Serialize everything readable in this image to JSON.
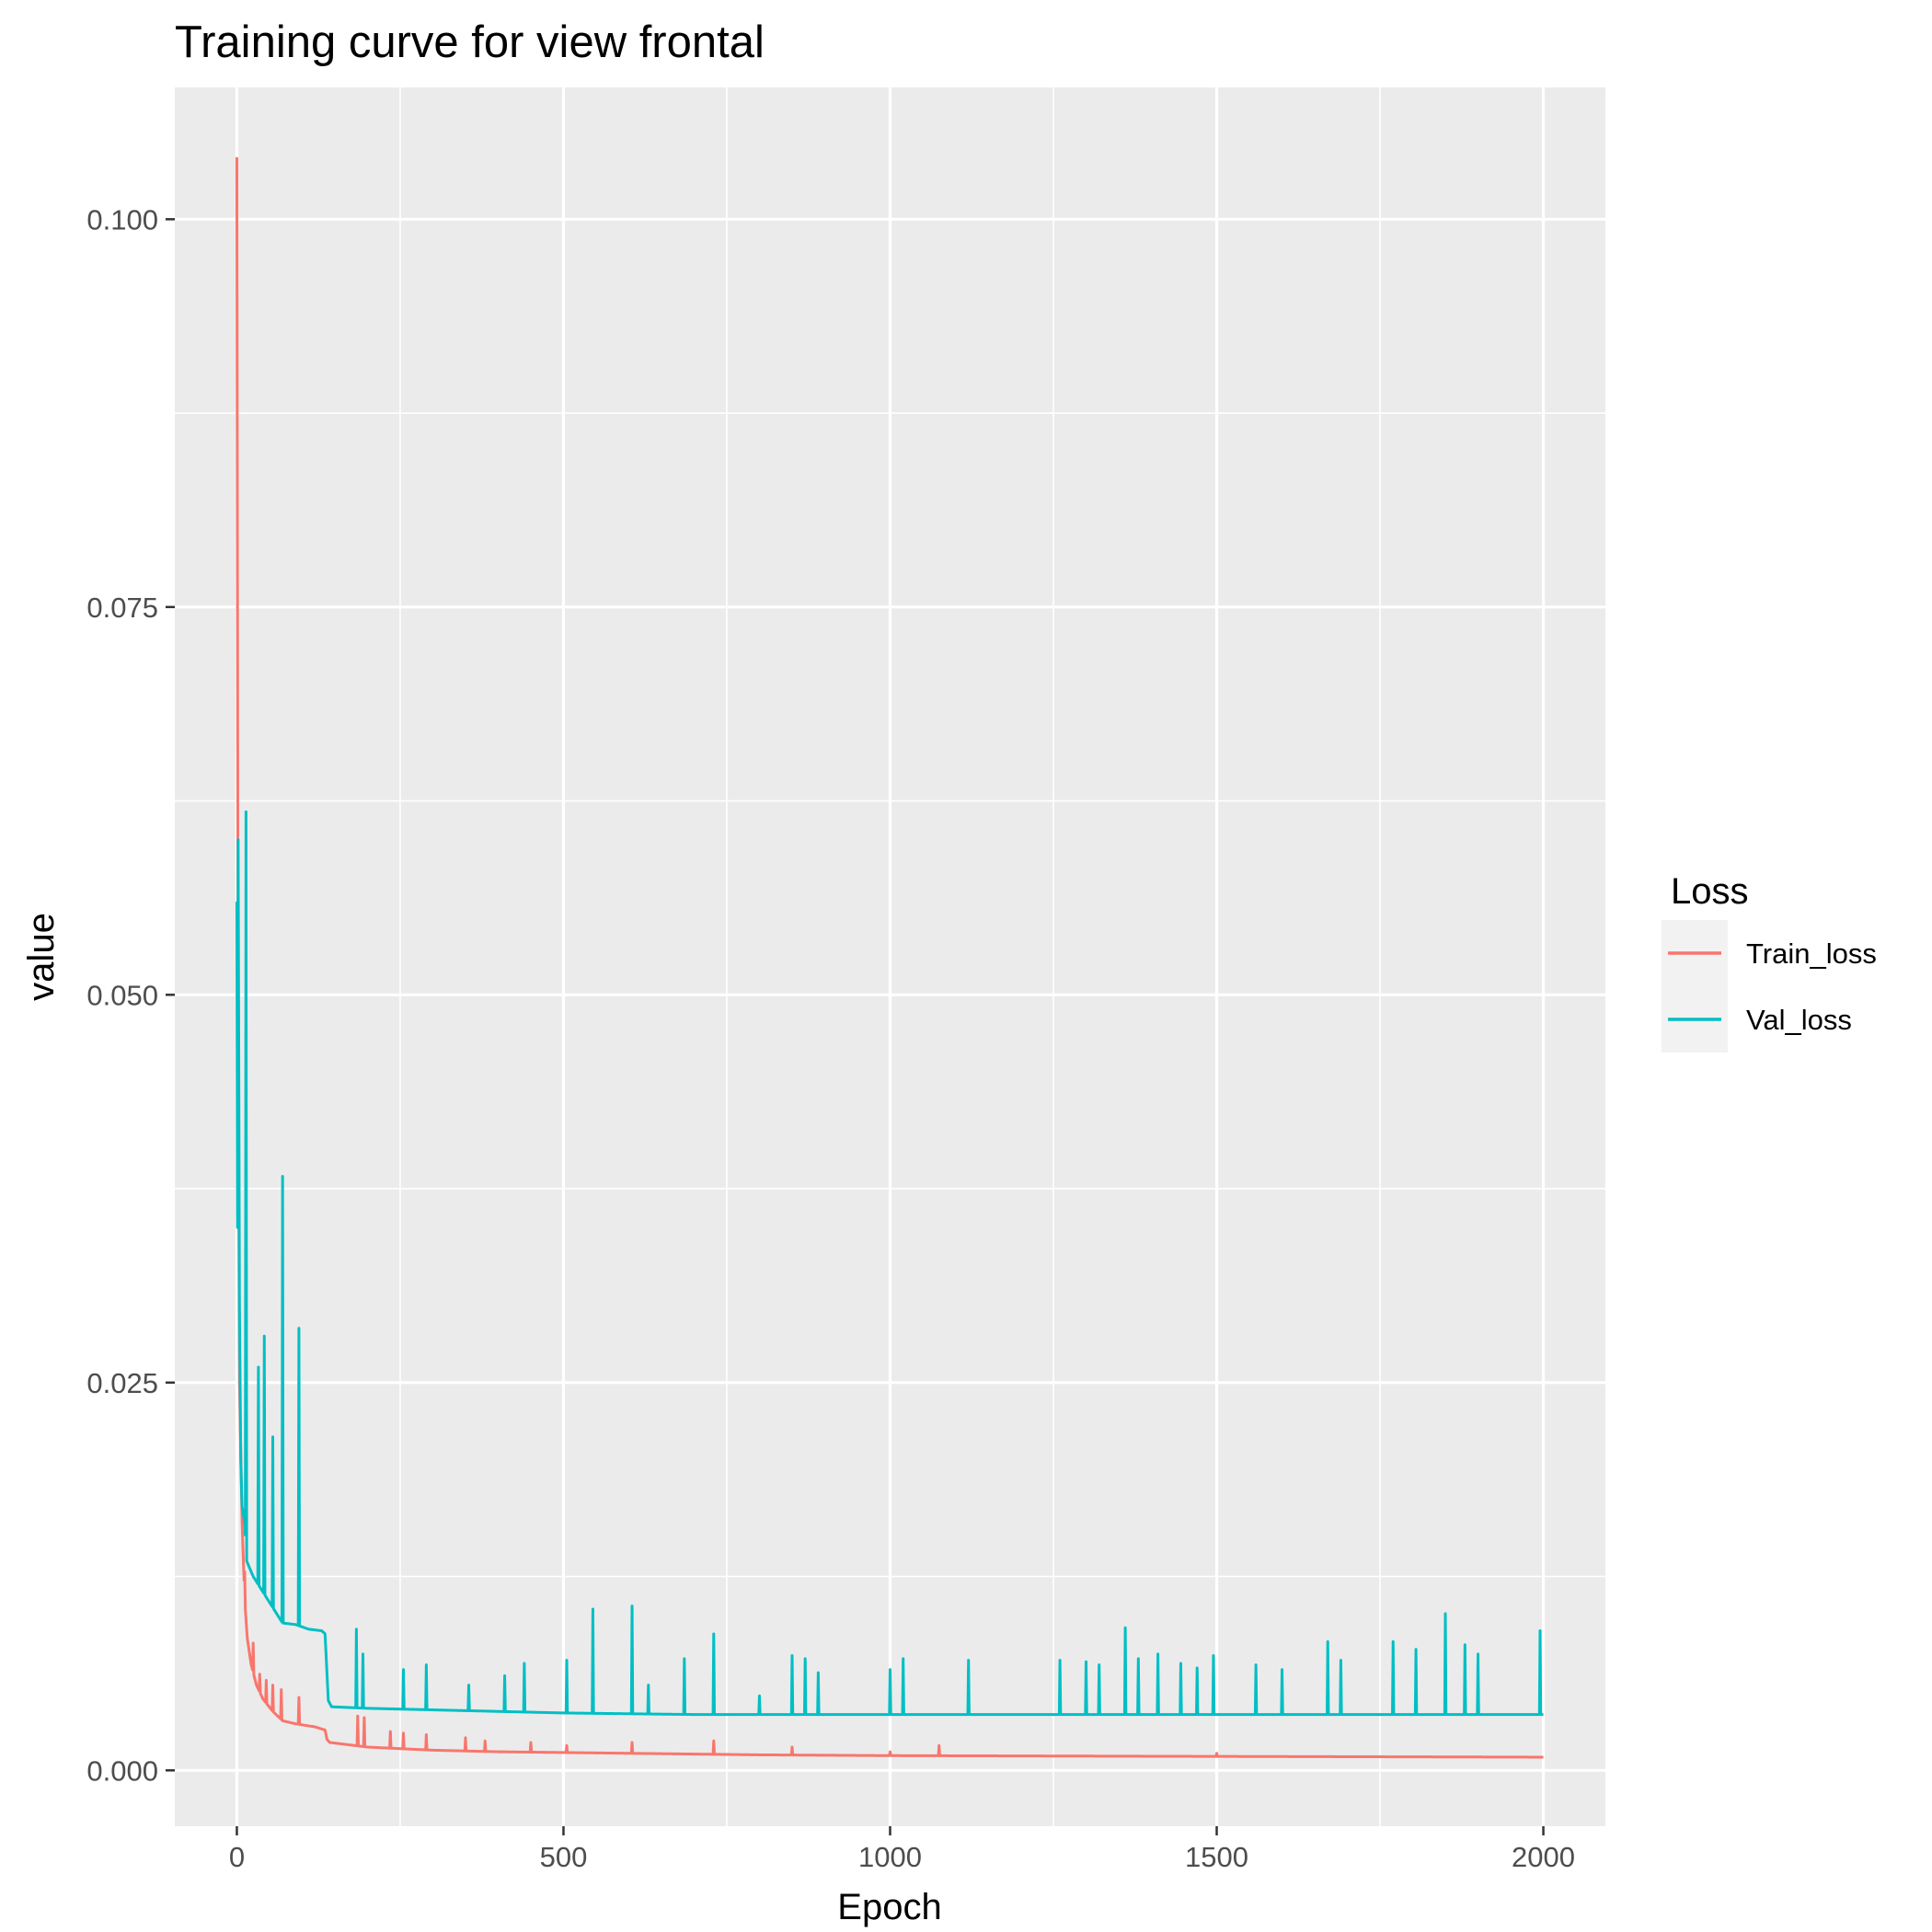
{
  "chart_data": {
    "type": "line",
    "title": "Training curve for view frontal",
    "xlabel": "Epoch",
    "ylabel": "value",
    "xlim": [
      -95,
      2095
    ],
    "ylim": [
      -0.0036,
      0.1085
    ],
    "x_ticks": [
      0,
      500,
      1000,
      1500,
      2000
    ],
    "x_tick_labels": [
      "0",
      "500",
      "1000",
      "1500",
      "2000"
    ],
    "x_minor_ticks": [
      250,
      750,
      1250,
      1750
    ],
    "y_ticks": [
      0.0,
      0.025,
      0.05,
      0.075,
      0.1
    ],
    "y_tick_labels": [
      "0.000",
      "0.025",
      "0.050",
      "0.075",
      "0.100"
    ],
    "y_minor_ticks": [
      0.0125,
      0.0375,
      0.0625,
      0.0875
    ],
    "grid": true,
    "legend": {
      "title": "Loss",
      "position": "right"
    },
    "colors": {
      "panel": "#ebebeb",
      "grid": "#ffffff",
      "tick": "#333333",
      "legend_key": "#f2f2f2"
    },
    "series": [
      {
        "name": "Train_loss",
        "color": "#f8766d",
        "baseline": [
          [
            0,
            0.104
          ],
          [
            2,
            0.045
          ],
          [
            4,
            0.025
          ],
          [
            8,
            0.016
          ],
          [
            12,
            0.011
          ],
          [
            16,
            0.0085
          ],
          [
            22,
            0.0068
          ],
          [
            30,
            0.0055
          ],
          [
            40,
            0.0046
          ],
          [
            55,
            0.0038
          ],
          [
            70,
            0.0032
          ],
          [
            90,
            0.003
          ],
          [
            120,
            0.0028
          ],
          [
            135,
            0.0026
          ],
          [
            138,
            0.002
          ],
          [
            142,
            0.0018
          ],
          [
            200,
            0.0015
          ],
          [
            300,
            0.0013
          ],
          [
            400,
            0.0012
          ],
          [
            500,
            0.00115
          ],
          [
            600,
            0.0011
          ],
          [
            700,
            0.00105
          ],
          [
            800,
            0.001
          ],
          [
            1000,
            0.00095
          ],
          [
            1500,
            0.0009
          ],
          [
            2000,
            0.00085
          ]
        ],
        "spikes": [
          [
            12,
            0.0128
          ],
          [
            25,
            0.0082
          ],
          [
            35,
            0.0062
          ],
          [
            45,
            0.0058
          ],
          [
            55,
            0.0055
          ],
          [
            68,
            0.0052
          ],
          [
            95,
            0.0047
          ],
          [
            185,
            0.0035
          ],
          [
            195,
            0.0034
          ],
          [
            235,
            0.0025
          ],
          [
            255,
            0.0024
          ],
          [
            290,
            0.0023
          ],
          [
            350,
            0.0021
          ],
          [
            380,
            0.0019
          ],
          [
            450,
            0.0018
          ],
          [
            505,
            0.0016
          ],
          [
            605,
            0.0018
          ],
          [
            730,
            0.0019
          ],
          [
            850,
            0.0015
          ],
          [
            1000,
            0.0012
          ],
          [
            1075,
            0.0016
          ],
          [
            1500,
            0.0011
          ]
        ]
      },
      {
        "name": "Val_loss",
        "color": "#00bfc4",
        "baseline": [
          [
            0,
            0.056
          ],
          [
            1,
            0.035
          ],
          [
            2,
            0.06
          ],
          [
            3,
            0.045
          ],
          [
            4,
            0.03
          ],
          [
            6,
            0.02
          ],
          [
            8,
            0.017
          ],
          [
            12,
            0.016
          ],
          [
            15,
            0.0135
          ],
          [
            25,
            0.0125
          ],
          [
            40,
            0.0115
          ],
          [
            55,
            0.0105
          ],
          [
            70,
            0.0095
          ],
          [
            90,
            0.0094
          ],
          [
            110,
            0.0091
          ],
          [
            130,
            0.009
          ],
          [
            135,
            0.0088
          ],
          [
            140,
            0.0045
          ],
          [
            145,
            0.0041
          ],
          [
            200,
            0.004
          ],
          [
            300,
            0.0039
          ],
          [
            400,
            0.0038
          ],
          [
            500,
            0.0037
          ],
          [
            600,
            0.00365
          ],
          [
            700,
            0.0036
          ],
          [
            800,
            0.0036
          ],
          [
            1000,
            0.0036
          ],
          [
            1500,
            0.0036
          ],
          [
            2000,
            0.0036
          ]
        ],
        "spikes": [
          [
            14,
            0.0618
          ],
          [
            33,
            0.026
          ],
          [
            42,
            0.028
          ],
          [
            55,
            0.0215
          ],
          [
            70,
            0.0383
          ],
          [
            95,
            0.0285
          ],
          [
            183,
            0.0091
          ],
          [
            193,
            0.0075
          ],
          [
            255,
            0.0065
          ],
          [
            290,
            0.0068
          ],
          [
            355,
            0.0055
          ],
          [
            410,
            0.0061
          ],
          [
            440,
            0.0069
          ],
          [
            505,
            0.0071
          ],
          [
            545,
            0.0104
          ],
          [
            605,
            0.0106
          ],
          [
            630,
            0.0055
          ],
          [
            685,
            0.0072
          ],
          [
            730,
            0.0088
          ],
          [
            800,
            0.0048
          ],
          [
            850,
            0.0074
          ],
          [
            870,
            0.0072
          ],
          [
            890,
            0.0063
          ],
          [
            1000,
            0.0065
          ],
          [
            1020,
            0.0072
          ],
          [
            1120,
            0.0071
          ],
          [
            1260,
            0.0071
          ],
          [
            1300,
            0.007
          ],
          [
            1320,
            0.0068
          ],
          [
            1360,
            0.0092
          ],
          [
            1380,
            0.0072
          ],
          [
            1410,
            0.0075
          ],
          [
            1445,
            0.0069
          ],
          [
            1470,
            0.0066
          ],
          [
            1495,
            0.0074
          ],
          [
            1560,
            0.0068
          ],
          [
            1600,
            0.0065
          ],
          [
            1670,
            0.0083
          ],
          [
            1690,
            0.0071
          ],
          [
            1770,
            0.0083
          ],
          [
            1805,
            0.0078
          ],
          [
            1850,
            0.0101
          ],
          [
            1880,
            0.0081
          ],
          [
            1900,
            0.0075
          ],
          [
            1995,
            0.009
          ]
        ]
      }
    ]
  }
}
